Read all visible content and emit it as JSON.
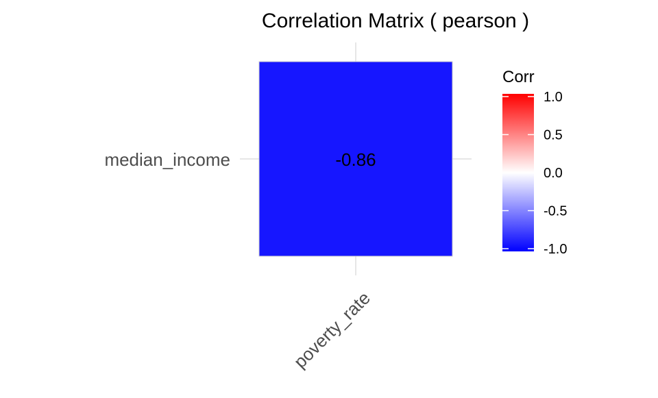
{
  "chart_data": {
    "type": "heatmap",
    "title": "Correlation Matrix ( pearson )",
    "x_categories": [
      "poverty_rate"
    ],
    "y_categories": [
      "median_income"
    ],
    "cells": [
      {
        "x": "poverty_rate",
        "y": "median_income",
        "value": -0.86,
        "label": "-0.86"
      }
    ],
    "legend": {
      "title": "Corr",
      "ticks": [
        "1.0",
        "0.5",
        "0.0",
        "-0.5",
        "-1.0"
      ],
      "tick_values": [
        1.0,
        0.5,
        0.0,
        -0.5,
        -1.0
      ],
      "range": [
        -1,
        1
      ],
      "colors": {
        "low": "#0000FF",
        "mid": "#FFFFFF",
        "high": "#FF0000"
      },
      "placement": "right"
    },
    "grid": true
  }
}
